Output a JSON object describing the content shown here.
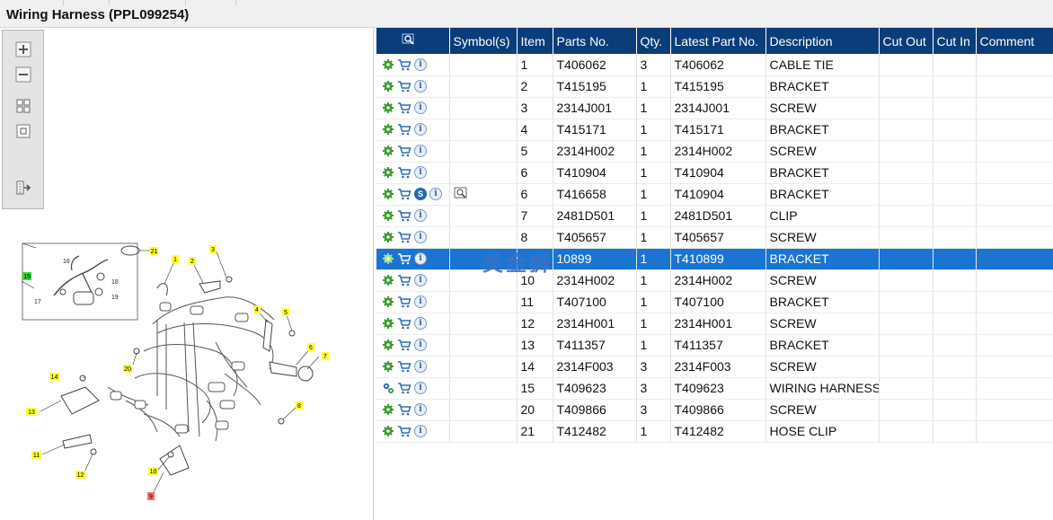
{
  "window": {
    "title": "Wiring Harness (PPL099254)"
  },
  "toolbar": {
    "buttons": [
      {
        "name": "zoom-in-icon"
      },
      {
        "name": "zoom-out-icon"
      },
      {
        "name": "fit-all-icon"
      },
      {
        "name": "fit-frame-icon"
      },
      {
        "name": "export-icon"
      }
    ]
  },
  "diagram": {
    "callouts": [
      "1",
      "2",
      "3",
      "4",
      "5",
      "6",
      "7",
      "8",
      "9",
      "10",
      "11",
      "12",
      "13",
      "14",
      "15",
      "16",
      "17",
      "18",
      "19",
      "20",
      "21"
    ],
    "callout_colors": {
      "default": "#ffff33",
      "highlighted_15": "#33dd33",
      "highlighted_9": "#ff6b6b"
    }
  },
  "table": {
    "columns": [
      "",
      "Symbol(s)",
      "Item",
      "Parts No.",
      "Qty.",
      "Latest Part No.",
      "Description",
      "Cut Out",
      "Cut In",
      "Comment"
    ],
    "rows": [
      {
        "item": "1",
        "part": "T406062",
        "qty": "3",
        "latest": "T406062",
        "desc": "CABLE TIE",
        "symbol": ""
      },
      {
        "item": "2",
        "part": "T415195",
        "qty": "1",
        "latest": "T415195",
        "desc": "BRACKET",
        "symbol": ""
      },
      {
        "item": "3",
        "part": "2314J001",
        "qty": "1",
        "latest": "2314J001",
        "desc": "SCREW",
        "symbol": ""
      },
      {
        "item": "4",
        "part": "T415171",
        "qty": "1",
        "latest": "T415171",
        "desc": "BRACKET",
        "symbol": ""
      },
      {
        "item": "5",
        "part": "2314H002",
        "qty": "1",
        "latest": "2314H002",
        "desc": "SCREW",
        "symbol": ""
      },
      {
        "item": "6",
        "part": "T410904",
        "qty": "1",
        "latest": "T410904",
        "desc": "BRACKET",
        "symbol": ""
      },
      {
        "item": "6",
        "part": "T416658",
        "qty": "1",
        "latest": "T410904",
        "desc": "BRACKET",
        "symbol": "superseded"
      },
      {
        "item": "7",
        "part": "2481D501",
        "qty": "1",
        "latest": "2481D501",
        "desc": "CLIP",
        "symbol": ""
      },
      {
        "item": "8",
        "part": "T405657",
        "qty": "1",
        "latest": "T405657",
        "desc": "SCREW",
        "symbol": ""
      },
      {
        "item": "",
        "part": "10899",
        "qty": "1",
        "latest": "T410899",
        "desc": "BRACKET",
        "symbol": "",
        "selected": true
      },
      {
        "item": "10",
        "part": "2314H002",
        "qty": "1",
        "latest": "2314H002",
        "desc": "SCREW",
        "symbol": ""
      },
      {
        "item": "11",
        "part": "T407100",
        "qty": "1",
        "latest": "T407100",
        "desc": "BRACKET",
        "symbol": ""
      },
      {
        "item": "12",
        "part": "2314H001",
        "qty": "1",
        "latest": "2314H001",
        "desc": "SCREW",
        "symbol": ""
      },
      {
        "item": "13",
        "part": "T411357",
        "qty": "1",
        "latest": "T411357",
        "desc": "BRACKET",
        "symbol": ""
      },
      {
        "item": "14",
        "part": "2314F003",
        "qty": "3",
        "latest": "2314F003",
        "desc": "SCREW",
        "symbol": ""
      },
      {
        "item": "15",
        "part": "T409623",
        "qty": "3",
        "latest": "T409623",
        "desc": "WIRING HARNESS",
        "symbol": "",
        "assembly": true
      },
      {
        "item": "20",
        "part": "T409866",
        "qty": "3",
        "latest": "T409866",
        "desc": "SCREW",
        "symbol": ""
      },
      {
        "item": "21",
        "part": "T412482",
        "qty": "1",
        "latest": "T412482",
        "desc": "HOSE CLIP",
        "symbol": ""
      }
    ]
  },
  "overlay": {
    "watermark": "英金狮"
  },
  "colors": {
    "header_bg": "#0a3d79",
    "selected_row": "#1a75d2",
    "gear_green": "#3c9c2e",
    "cart_blue": "#2f6db3"
  }
}
